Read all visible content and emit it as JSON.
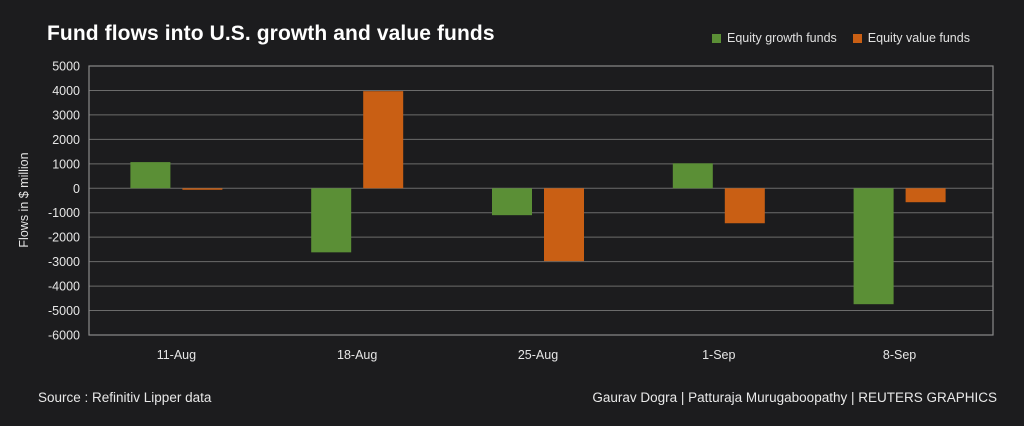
{
  "title": "Fund flows into U.S. growth and value funds",
  "legend": [
    {
      "label": "Equity growth funds",
      "color": "#5b8f36"
    },
    {
      "label": "Equity value funds",
      "color": "#c95f14"
    }
  ],
  "footer": {
    "source": "Source : Refinitiv Lipper data",
    "credit": "Gaurav Dogra | Patturaja Murugaboopathy | REUTERS GRAPHICS"
  },
  "chart_data": {
    "type": "bar",
    "title": "Fund flows into U.S. growth and value funds",
    "xlabel": "",
    "ylabel": "Flows in $ million",
    "ylim": [
      -6000,
      5000
    ],
    "yticks": [
      5000,
      4000,
      3000,
      2000,
      1000,
      0,
      -1000,
      -2000,
      -3000,
      -4000,
      -5000,
      -6000
    ],
    "ytick_labels": [
      "5000",
      "4000",
      "3000",
      "2000",
      "1000",
      "0",
      "-1000",
      "-2000",
      "-3000",
      "-4000",
      "-5000",
      "-6000"
    ],
    "grid": true,
    "legend_position": "top-right",
    "categories": [
      "11-Aug",
      "18-Aug",
      "25-Aug",
      "1-Sep",
      "8-Sep"
    ],
    "series": [
      {
        "name": "Equity growth funds",
        "color": "#5b8f36",
        "values": [
          1070,
          -2620,
          -1100,
          1020,
          -4740
        ]
      },
      {
        "name": "Equity value funds",
        "color": "#c95f14",
        "values": [
          -50,
          3970,
          -2980,
          -1430,
          -570
        ]
      }
    ]
  }
}
